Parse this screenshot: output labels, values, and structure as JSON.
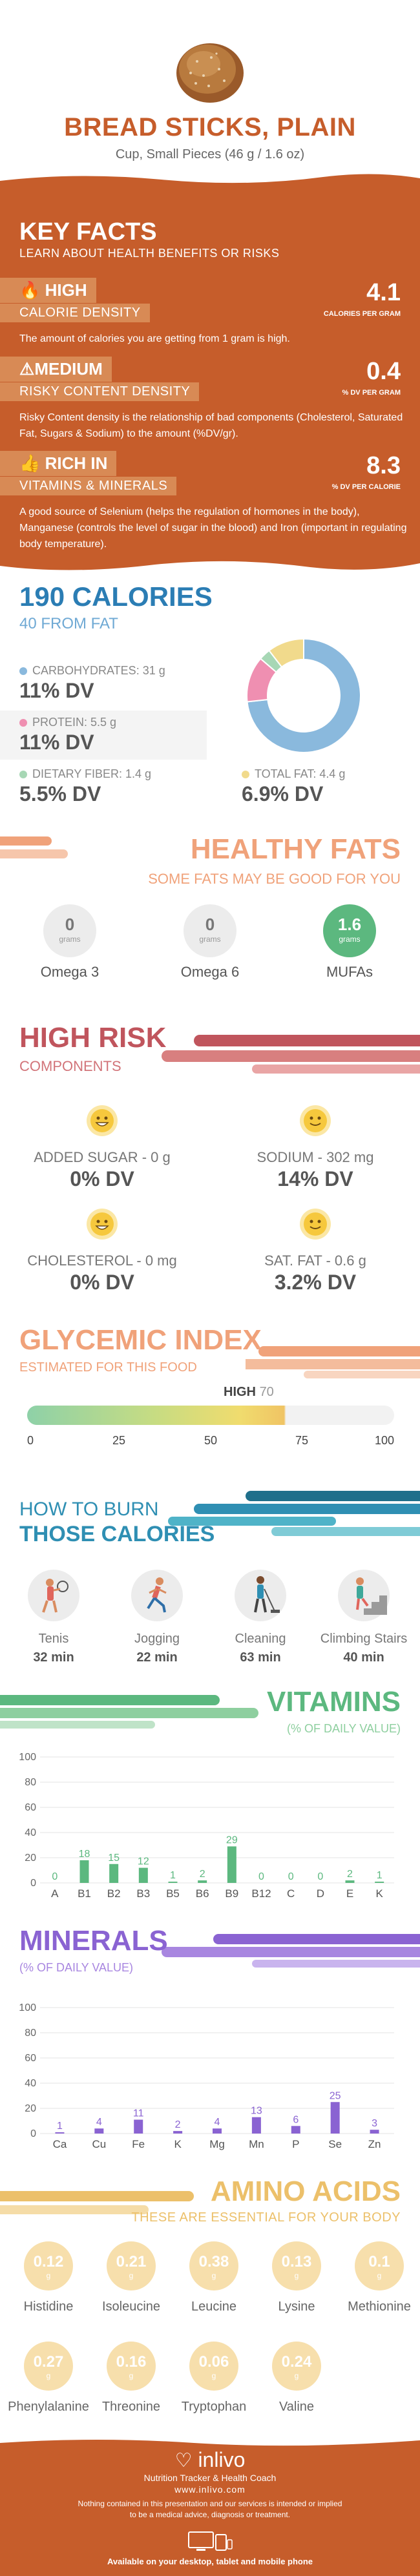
{
  "header": {
    "title": "BREAD STICKS, PLAIN",
    "serving": "Cup, Small Pieces (46 g / 1.6 oz)"
  },
  "key_facts": {
    "title": "KEY FACTS",
    "subtitle": "LEARN ABOUT HEALTH BENEFITS OR RISKS",
    "items": [
      {
        "level": "HIGH",
        "name": "CALORIE DENSITY",
        "value": "4.1",
        "unit": "CALORIES PER GRAM",
        "description": "The amount of calories you are getting from 1 gram is high."
      },
      {
        "level": "MEDIUM",
        "name": "RISKY CONTENT DENSITY",
        "value": "0.4",
        "unit": "% DV PER GRAM",
        "description": "Risky Content density is the relationship of bad components (Cholesterol, Saturated Fat, Sugars & Sodium) to the amount (%DV/gr)."
      },
      {
        "level": "RICH IN",
        "name": "VITAMINS & MINERALS",
        "value": "8.3",
        "unit": "% DV PER CALORIE",
        "description": "A good source of Selenium (helps the regulation of hormones in the body), Manganese (controls the level of sugar in the blood) and Iron (important in regulating body temperature)."
      }
    ]
  },
  "calories": {
    "title": "190 CALORIES",
    "from_fat": "40 FROM FAT",
    "macros": [
      {
        "label": "CARBOHYDRATES: 31 g",
        "dv": "11% DV",
        "color": "#8ab9dd"
      },
      {
        "label": "PROTEIN: 5.5 g",
        "dv": "11% DV",
        "color": "#ef8fb1"
      },
      {
        "label": "DIETARY FIBER: 1.4 g",
        "dv": "5.5% DV",
        "color": "#a7d7b5"
      },
      {
        "label": "TOTAL FAT: 4.4 g",
        "dv": "6.9% DV",
        "color": "#f1da8c"
      }
    ],
    "donut": [
      {
        "name": "carbohydrates",
        "value": 31,
        "color": "#8ab9dd"
      },
      {
        "name": "protein",
        "value": 5.5,
        "color": "#ef8fb1"
      },
      {
        "name": "fiber",
        "value": 1.4,
        "color": "#a7d7b5"
      },
      {
        "name": "fat",
        "value": 4.4,
        "color": "#f1da8c"
      }
    ]
  },
  "healthy_fats": {
    "title": "HEALTHY FATS",
    "subtitle": "SOME FATS MAY BE GOOD FOR YOU",
    "items": [
      {
        "name": "Omega 3",
        "value": "0",
        "unit": "grams",
        "highlight": false
      },
      {
        "name": "Omega 6",
        "value": "0",
        "unit": "grams",
        "highlight": false
      },
      {
        "name": "MUFAs",
        "value": "1.6",
        "unit": "grams",
        "highlight": true
      }
    ]
  },
  "high_risk": {
    "title": "HIGH RISK",
    "subtitle": "COMPONENTS",
    "items": [
      {
        "label": "ADDED SUGAR - 0 g",
        "dv": "0% DV"
      },
      {
        "label": "SODIUM - 302 mg",
        "dv": "14% DV"
      },
      {
        "label": "CHOLESTEROL - 0 mg",
        "dv": "0% DV"
      },
      {
        "label": "SAT. FAT - 0.6 g",
        "dv": "3.2% DV"
      }
    ]
  },
  "glycemic": {
    "title": "GLYCEMIC INDEX",
    "subtitle": "ESTIMATED FOR THIS FOOD",
    "level": "HIGH",
    "value": "70",
    "value_num": 70,
    "ticks": [
      "0",
      "25",
      "50",
      "75",
      "100"
    ]
  },
  "burn": {
    "title_line1": "HOW TO BURN",
    "title_line2": "THOSE CALORIES",
    "activities": [
      {
        "name": "Tenis",
        "time": "32 min",
        "icon": "tennis-icon"
      },
      {
        "name": "Jogging",
        "time": "22 min",
        "icon": "jogging-icon"
      },
      {
        "name": "Cleaning",
        "time": "63 min",
        "icon": "cleaning-icon"
      },
      {
        "name": "Climbing Stairs",
        "time": "40 min",
        "icon": "stairs-icon"
      }
    ]
  },
  "vitamins": {
    "title": "VITAMINS",
    "subtitle": "(% OF DAILY VALUE)"
  },
  "minerals": {
    "title": "MINERALS",
    "subtitle": "(% OF DAILY VALUE)"
  },
  "chart_data": [
    {
      "type": "bar",
      "categories": [
        "A",
        "B1",
        "B2",
        "B3",
        "B5",
        "B6",
        "B9",
        "B12",
        "C",
        "D",
        "E",
        "K"
      ],
      "values": [
        0,
        18,
        15,
        12,
        1,
        2,
        29,
        0,
        0,
        0,
        2,
        1
      ],
      "ylim": [
        0,
        100
      ],
      "yticks": [
        "0",
        "20",
        "40",
        "60",
        "80",
        "100"
      ],
      "color": "#5cb87f",
      "grid": true
    },
    {
      "type": "bar",
      "categories": [
        "Ca",
        "Cu",
        "Fe",
        "K",
        "Mg",
        "Mn",
        "P",
        "Se",
        "Zn"
      ],
      "values": [
        1,
        4,
        11,
        2,
        4,
        13,
        6,
        25,
        3
      ],
      "ylim": [
        0,
        100
      ],
      "yticks": [
        "0",
        "20",
        "40",
        "60",
        "80",
        "100"
      ],
      "color": "#8a63d2",
      "grid": true
    }
  ],
  "amino": {
    "title": "AMINO ACIDS",
    "subtitle": "THESE ARE ESSENTIAL FOR YOUR BODY",
    "unit": "g",
    "items": [
      {
        "name": "Histidine",
        "value": "0.12"
      },
      {
        "name": "Isoleucine",
        "value": "0.21"
      },
      {
        "name": "Leucine",
        "value": "0.38"
      },
      {
        "name": "Lysine",
        "value": "0.13"
      },
      {
        "name": "Methionine",
        "value": "0.1"
      },
      {
        "name": "Phenylalanine",
        "value": "0.27"
      },
      {
        "name": "Threonine",
        "value": "0.16"
      },
      {
        "name": "Tryptophan",
        "value": "0.06"
      },
      {
        "name": "Valine",
        "value": "0.24"
      }
    ]
  },
  "footer": {
    "brand": "inlivo",
    "tagline": "Nutrition Tracker & Health Coach",
    "website": "www.inlivo.com",
    "disclaimer": "Nothing contained in this presentation and our services is intended or implied to be a medical advice, diagnosis or treatment.",
    "available": "Available on your desktop, tablet and mobile phone"
  },
  "colors": {
    "brand": "#c65d2b",
    "blue": "#2b7db4",
    "risk": "#c0555d",
    "peach": "#f0a27a",
    "gold": "#ecc06a"
  }
}
